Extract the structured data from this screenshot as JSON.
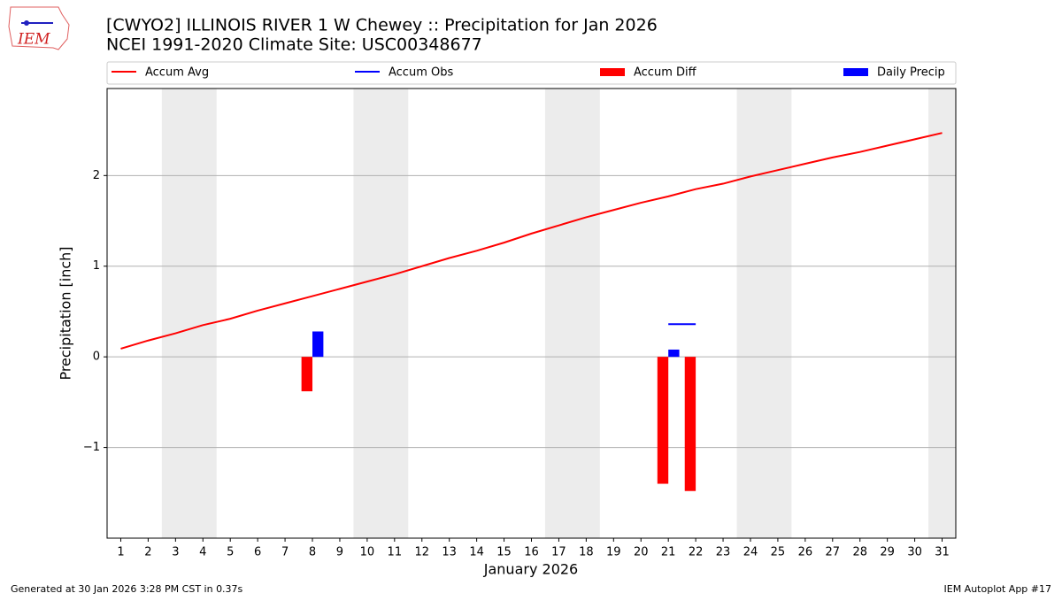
{
  "logo": "IEM",
  "footer_left": "Generated at 30 Jan 2026 3:28 PM CST in 0.37s",
  "footer_right": "IEM Autoplot App #17",
  "chart_data": {
    "type": "bar_line",
    "title": "[CWYO2] ILLINOIS RIVER 1 W Chewey :: Precipitation for Jan 2026",
    "subtitle": "NCEI 1991-2020 Climate Site: USC00348677",
    "x_label": "January 2026",
    "y_label": "Precipitation [inch]",
    "x": [
      1,
      2,
      3,
      4,
      5,
      6,
      7,
      8,
      9,
      10,
      11,
      12,
      13,
      14,
      15,
      16,
      17,
      18,
      19,
      20,
      21,
      22,
      23,
      24,
      25,
      26,
      27,
      28,
      29,
      30,
      31
    ],
    "xlim": [
      0.5,
      31.5
    ],
    "xticks": [
      1,
      2,
      3,
      4,
      5,
      6,
      7,
      8,
      9,
      10,
      11,
      12,
      13,
      14,
      15,
      16,
      17,
      18,
      19,
      20,
      21,
      22,
      23,
      24,
      25,
      26,
      27,
      28,
      29,
      30,
      31
    ],
    "ylim": [
      -2,
      2.96
    ],
    "yticks": [
      {
        "value": -1,
        "label": "−1"
      },
      0,
      1,
      2
    ],
    "grid": true,
    "shaded_spans": [
      [
        2.5,
        4.5
      ],
      [
        9.5,
        11.5
      ],
      [
        16.5,
        18.5
      ],
      [
        23.5,
        25.5
      ],
      [
        30.5,
        31.5
      ]
    ],
    "series": [
      {
        "name": "Accum Avg",
        "color": "#ff0000",
        "kind": "line",
        "values": [
          0.09,
          0.18,
          0.26,
          0.35,
          0.42,
          0.51,
          0.59,
          0.67,
          0.75,
          0.83,
          0.91,
          1.0,
          1.09,
          1.17,
          1.26,
          1.36,
          1.45,
          1.54,
          1.62,
          1.7,
          1.77,
          1.85,
          1.91,
          1.99,
          2.06,
          2.13,
          2.2,
          2.26,
          2.33,
          2.4,
          2.47
        ]
      },
      {
        "name": "Accum Obs",
        "color": "#0000ff",
        "kind": "line",
        "values": [
          null,
          null,
          null,
          null,
          null,
          null,
          null,
          null,
          null,
          null,
          null,
          null,
          null,
          null,
          null,
          null,
          null,
          null,
          null,
          null,
          0.36,
          0.36,
          null,
          null,
          null,
          null,
          null,
          null,
          null,
          null,
          null
        ]
      },
      {
        "name": "Accum Diff",
        "color": "#ff0000",
        "kind": "bar",
        "values": [
          null,
          null,
          null,
          null,
          null,
          null,
          null,
          -0.38,
          null,
          null,
          null,
          null,
          null,
          null,
          null,
          null,
          null,
          null,
          null,
          null,
          -1.4,
          -1.48,
          null,
          null,
          null,
          null,
          null,
          null,
          null,
          null,
          null
        ]
      },
      {
        "name": "Daily Precip",
        "color": "#0000ff",
        "kind": "bar",
        "values": [
          null,
          null,
          null,
          null,
          null,
          null,
          null,
          0.28,
          null,
          null,
          null,
          null,
          null,
          null,
          null,
          null,
          null,
          null,
          null,
          null,
          0.08,
          null,
          null,
          null,
          null,
          null,
          null,
          null,
          null,
          null,
          null
        ]
      }
    ]
  }
}
